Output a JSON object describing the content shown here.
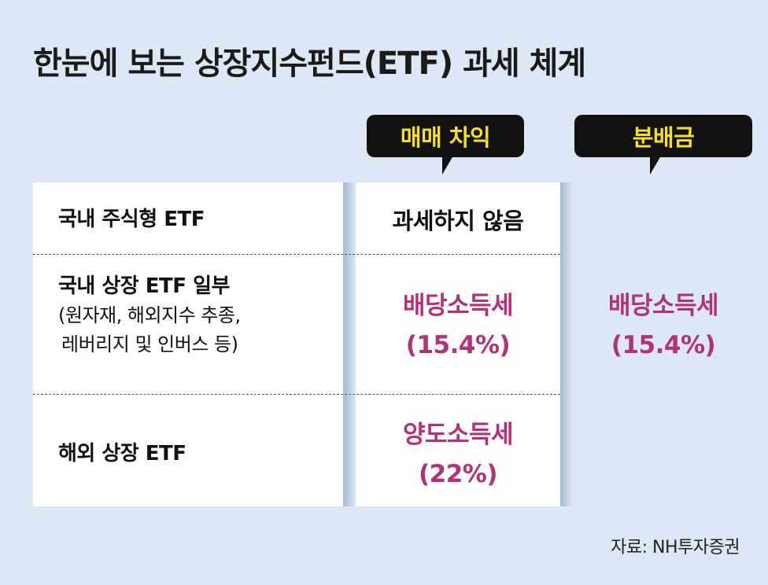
{
  "title": "한눈에 보는 상장지수펀드(ETF) 과세 체계",
  "columns": {
    "trading_gain": "매매 차익",
    "distribution": "분배금"
  },
  "rows": [
    {
      "label": "국내 주식형 ETF",
      "trading_gain": "과세하지 않음"
    },
    {
      "label_main": "국내 상장 ETF 일부",
      "label_sub_1": "(원자재, 해외지수 추종,",
      "label_sub_2": "레버리지 및 인버스 등)",
      "trading_gain_tax": "배당소득세",
      "trading_gain_rate": "(15.4%)"
    },
    {
      "label": "해외 상장 ETF",
      "trading_gain_tax": "양도소득세",
      "trading_gain_rate": "(22%)"
    }
  ],
  "distribution": {
    "tax": "배당소득세",
    "rate": "(15.4%)"
  },
  "source": "자료: NH투자증권",
  "colors": {
    "background": "#dce8f5",
    "bubble_bg": "#111111",
    "bubble_text": "#f7e11a",
    "highlight": "#b3307a"
  }
}
